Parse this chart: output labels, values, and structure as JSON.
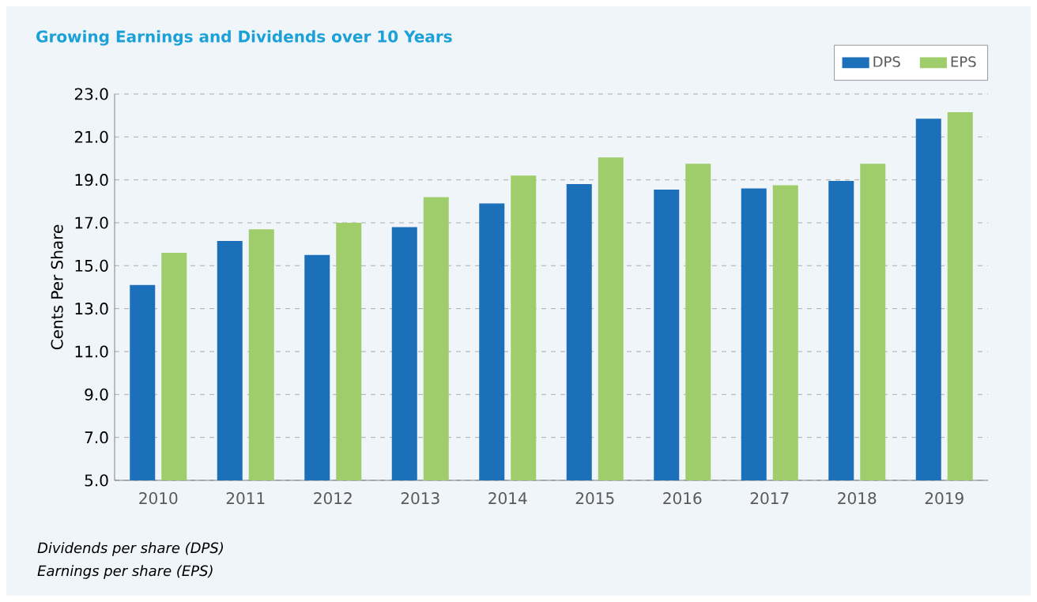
{
  "chart_data": {
    "type": "bar",
    "title": "Growing Earnings and Dividends over 10 Years",
    "ylabel": "Cents Per Share",
    "categories": [
      "2010",
      "2011",
      "2012",
      "2013",
      "2014",
      "2015",
      "2016",
      "2017",
      "2018",
      "2019"
    ],
    "series": [
      {
        "name": "DPS",
        "color": "#1c6fb9",
        "values": [
          14.1,
          16.15,
          15.5,
          16.8,
          17.9,
          18.8,
          18.55,
          18.6,
          18.95,
          21.85
        ]
      },
      {
        "name": "EPS",
        "color": "#9fcd6c",
        "values": [
          15.6,
          16.7,
          17.0,
          18.2,
          19.2,
          20.05,
          19.75,
          18.75,
          19.75,
          22.15
        ]
      }
    ],
    "ylim": [
      5,
      23
    ],
    "yticks": [
      {
        "value": 5,
        "label": "5.0"
      },
      {
        "value": 7,
        "label": "7.0"
      },
      {
        "value": 9,
        "label": "9.0"
      },
      {
        "value": 11,
        "label": "11.0"
      },
      {
        "value": 13,
        "label": "13.0"
      },
      {
        "value": 15,
        "label": "15.0"
      },
      {
        "value": 17,
        "label": "17.0"
      },
      {
        "value": 19,
        "label": "19.0"
      },
      {
        "value": 21,
        "label": "21.0"
      },
      {
        "value": 23,
        "label": "23.0"
      }
    ],
    "grid": "y",
    "legend": "top right",
    "annotations": [
      "Dividends per share (DPS)",
      "Earnings per share (EPS)"
    ]
  }
}
